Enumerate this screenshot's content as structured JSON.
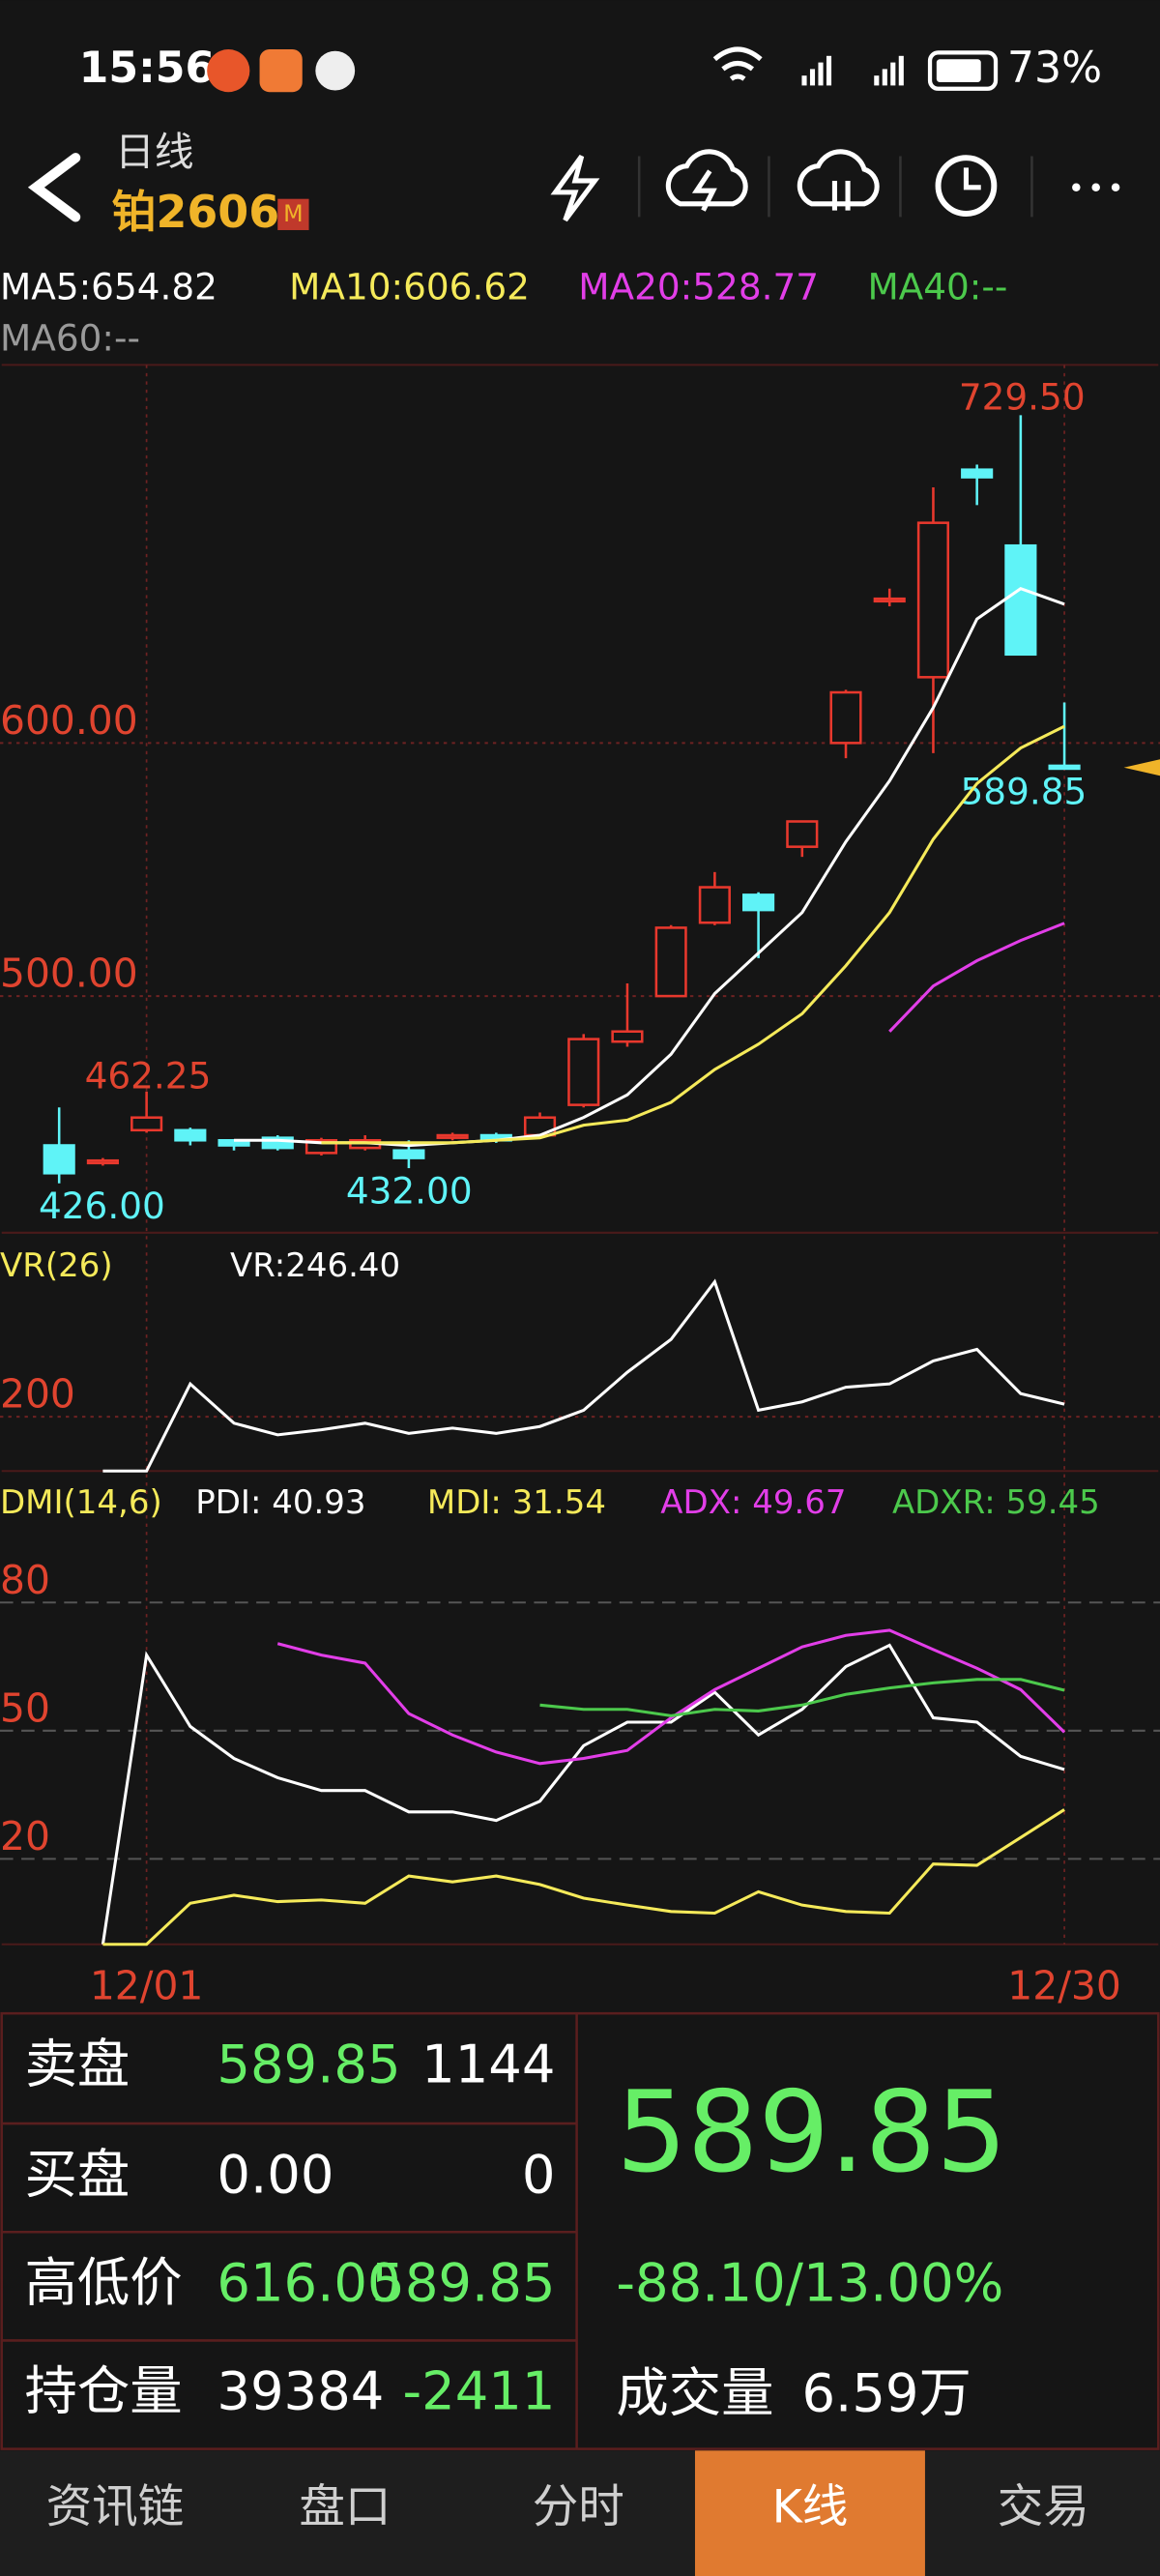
{
  "status_bar": {
    "time": "15:56",
    "battery": "73%"
  },
  "header": {
    "subtitle": "日线",
    "title": "铂2606",
    "badge": "M"
  },
  "chart_data": [
    {
      "type": "candlestick",
      "categories": [
        null,
        null,
        "12/01",
        null,
        null,
        null,
        null,
        null,
        null,
        null,
        null,
        null,
        null,
        null,
        null,
        null,
        null,
        null,
        null,
        null,
        null,
        null,
        null,
        "12/30"
      ],
      "open": [
        441,
        434,
        447,
        447,
        443,
        444,
        438,
        440,
        439,
        444,
        445,
        445,
        457,
        482,
        500,
        529,
        540,
        559,
        600,
        656,
        626,
        708,
        678,
        591
      ],
      "high": [
        456,
        436,
        462.25,
        448,
        443,
        445,
        444,
        445,
        443,
        446,
        446,
        454,
        485,
        505,
        528,
        549,
        541,
        569,
        621,
        661,
        701,
        710,
        729.5,
        616
      ],
      "low": [
        426,
        433,
        446,
        441,
        439,
        439,
        437,
        439,
        432,
        443,
        442,
        444,
        456,
        480,
        500,
        528,
        515,
        555,
        594,
        654,
        596,
        694,
        635,
        589.85
      ],
      "close": [
        430,
        435,
        452,
        443,
        441,
        440,
        443,
        443,
        436,
        445,
        443,
        452,
        483,
        486,
        527,
        543,
        534,
        569,
        620,
        657,
        687,
        705,
        635,
        589.85
      ],
      "up_color": "#e8382d",
      "down_color": "#5ff3f7",
      "ylim": [
        406.5,
        749.4
      ],
      "yticks": [
        {
          "value": 500,
          "label": "500.00"
        },
        {
          "value": 600,
          "label": "600.00"
        }
      ],
      "legend": [
        {
          "label": "MA5:654.82",
          "color": "#ffffff"
        },
        {
          "label": "MA10:606.62",
          "color": "#f5ea5a"
        },
        {
          "label": "MA20:528.77",
          "color": "#e23ee8"
        },
        {
          "label": "MA40:--",
          "color": "#4cc94c"
        },
        {
          "label": "MA60:--",
          "color": "#9a9a9a"
        }
      ],
      "series": [
        {
          "color": "#ffffff",
          "values": [
            null,
            null,
            null,
            null,
            443,
            443,
            442,
            442,
            441,
            442,
            443,
            445,
            452,
            461,
            477,
            501,
            517,
            533,
            561,
            585,
            614,
            649,
            661,
            654.82
          ]
        },
        {
          "color": "#f5ea5a",
          "values": [
            null,
            null,
            null,
            null,
            null,
            null,
            442,
            442,
            442,
            442,
            443,
            444,
            449,
            451,
            458,
            471,
            481,
            493,
            512,
            533,
            562,
            584,
            598,
            606.62
          ]
        },
        {
          "color": "#e23ee8",
          "values": [
            null,
            null,
            null,
            null,
            null,
            null,
            null,
            null,
            null,
            null,
            null,
            null,
            null,
            null,
            null,
            null,
            null,
            null,
            null,
            486,
            504,
            514,
            522,
            528.77
          ]
        }
      ],
      "annotations": [
        "729.50",
        "462.25",
        "432.00",
        "426.00",
        "589.85"
      ]
    },
    {
      "type": "line",
      "title": "VR(26)",
      "legend": [
        {
          "label": "VR:246.40",
          "color": "#ffffff"
        }
      ],
      "ylim": [
        0,
        848
      ],
      "yticks": [
        200
      ],
      "series": [
        {
          "color": "#ffffff",
          "values": [
            null,
            0,
            0,
            321,
            176,
            133,
            152,
            176,
            139,
            158,
            139,
            164,
            224,
            364,
            485,
            697,
            224,
            255,
            309,
            321,
            406,
            448,
            285,
            246.4
          ]
        }
      ]
    },
    {
      "type": "line",
      "title": "DMI(14,6)",
      "legend": [
        {
          "label": "PDI: 40.93",
          "color": "#ffffff"
        },
        {
          "label": "MDI: 31.54",
          "color": "#f5ea5a"
        },
        {
          "label": "ADX: 49.67",
          "color": "#e23ee8"
        },
        {
          "label": "ADXR: 59.45",
          "color": "#4cc94c"
        }
      ],
      "ylim": [
        0,
        95
      ],
      "yticks": [
        20,
        50,
        80
      ],
      "series": [
        {
          "color": "#ffffff",
          "values": [
            null,
            0,
            67.7,
            51,
            43.5,
            39,
            36,
            36,
            31,
            31,
            29,
            33.5,
            46.5,
            52,
            52,
            59,
            49,
            55,
            65,
            70,
            53,
            52,
            44,
            40.93
          ]
        },
        {
          "color": "#f5ea5a",
          "values": [
            null,
            0,
            0,
            9.6,
            11.5,
            10,
            10.4,
            9.6,
            16,
            14.6,
            16,
            14,
            10.8,
            9.2,
            7.7,
            7.3,
            12.3,
            9.2,
            7.7,
            7.3,
            18.8,
            18.5,
            25,
            31.54
          ]
        },
        {
          "color": "#e23ee8",
          "values": [
            null,
            null,
            null,
            null,
            null,
            70.4,
            67.7,
            65.8,
            54,
            49,
            45,
            42.3,
            43.5,
            45.4,
            53,
            59.6,
            64.6,
            69.6,
            72.3,
            73.5,
            69,
            64.6,
            59.6,
            49.67
          ]
        },
        {
          "color": "#4cc94c",
          "values": [
            null,
            null,
            null,
            null,
            null,
            null,
            null,
            null,
            null,
            null,
            null,
            56,
            55,
            55,
            53.5,
            55,
            54.6,
            56,
            58.5,
            60,
            61.2,
            62,
            62,
            59.45
          ]
        }
      ]
    }
  ],
  "quote_table": {
    "rows": [
      [
        "卖盘",
        "589.85",
        "1144"
      ],
      [
        "买盘",
        "0.00",
        "0"
      ],
      [
        "高低价",
        "616.00",
        "589.85"
      ],
      [
        "持仓量",
        "39384",
        "-2411"
      ]
    ]
  },
  "quote_summary": {
    "price": "589.85",
    "change": "-88.10/13.00%",
    "volume_label": "成交量",
    "volume": "6.59万"
  },
  "tabs": [
    "资讯链",
    "盘口",
    "分时",
    "K线",
    "交易"
  ],
  "active_tab": 3
}
